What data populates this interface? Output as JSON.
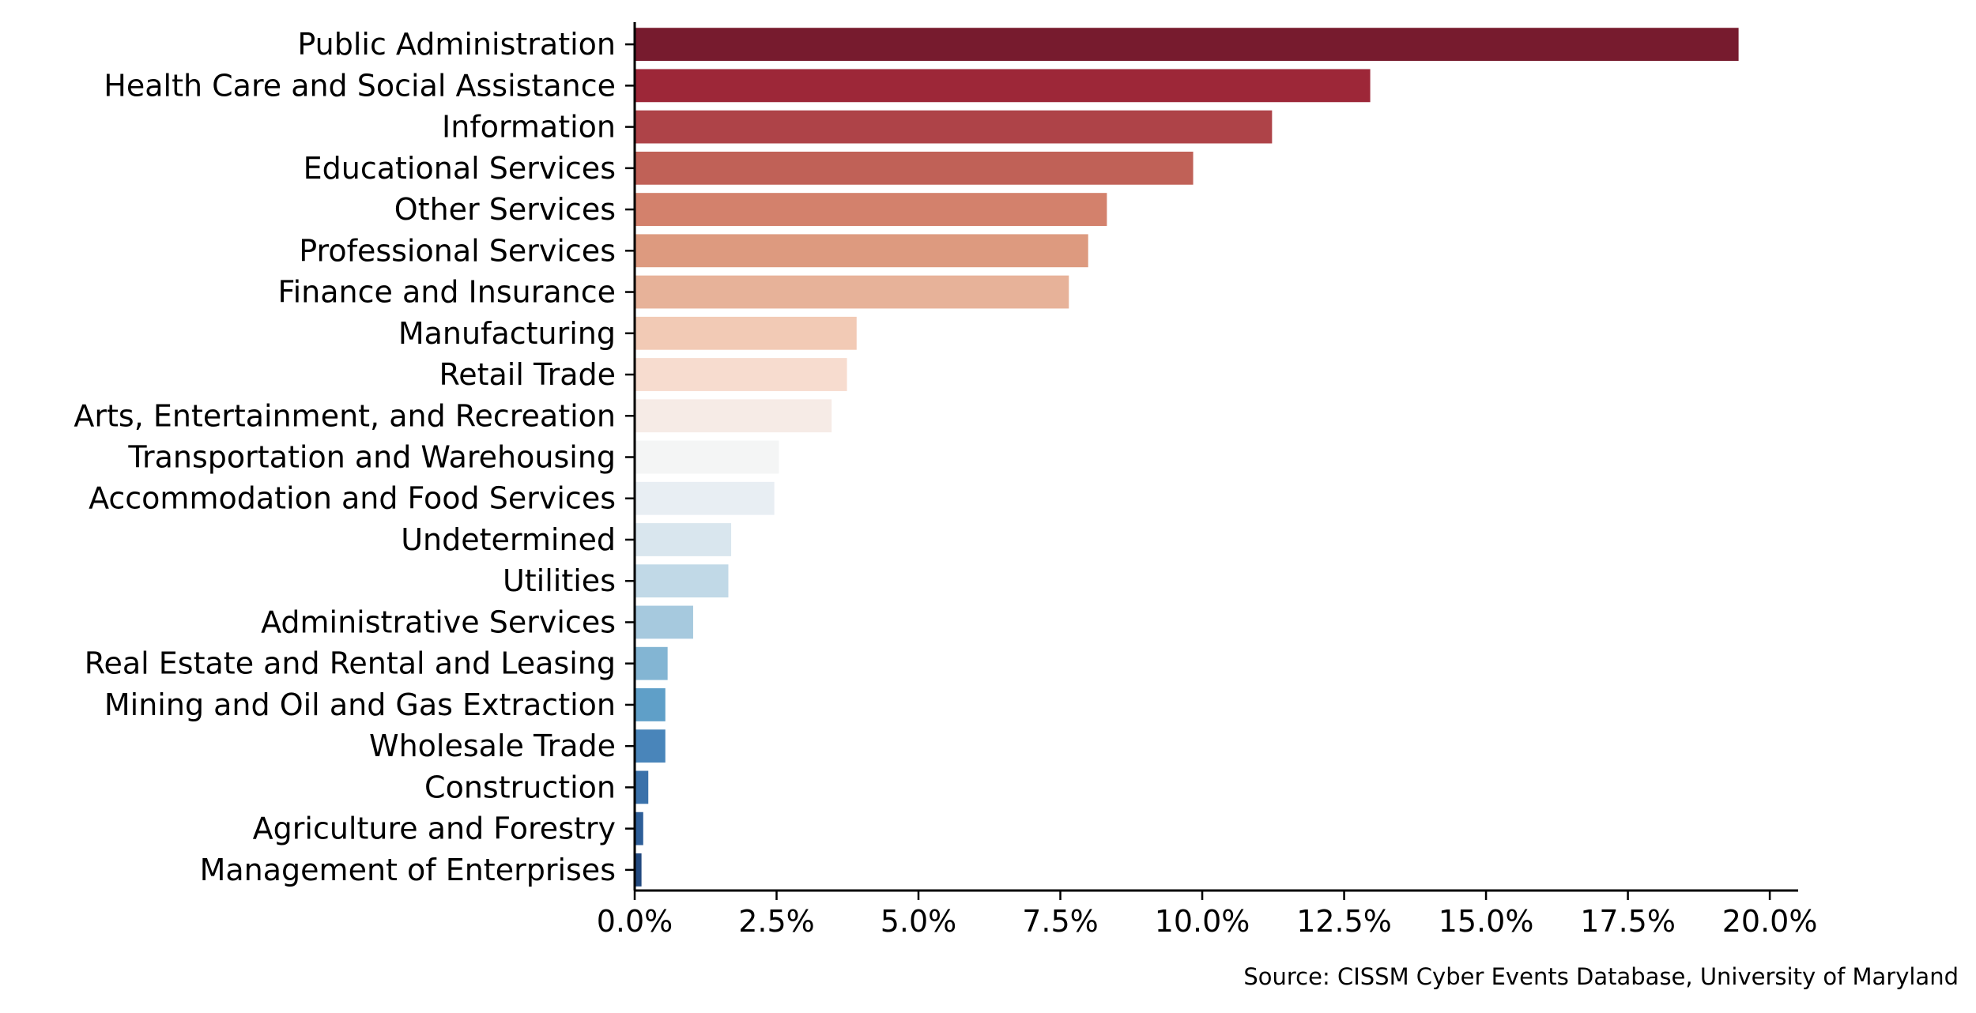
{
  "chart_data": {
    "type": "bar",
    "orientation": "horizontal",
    "title": "",
    "xlabel": "",
    "ylabel": "",
    "categories": [
      "Public Administration",
      "Health Care and Social Assistance",
      "Information",
      "Educational Services",
      "Other Services",
      "Professional Services",
      "Finance and Insurance",
      "Manufacturing",
      "Retail Trade",
      "Arts, Entertainment, and Recreation",
      "Transportation and Warehousing",
      "Accommodation and Food Services",
      "Undetermined",
      "Utilities",
      "Administrative Services",
      "Real Estate and Rental and Leasing",
      "Mining and Oil and Gas Extraction",
      "Wholesale Trade",
      "Construction",
      "Agriculture and Forestry",
      "Management of Enterprises"
    ],
    "values": [
      19.45,
      12.96,
      11.23,
      9.84,
      8.32,
      7.99,
      7.65,
      3.91,
      3.74,
      3.47,
      2.54,
      2.46,
      1.7,
      1.65,
      1.03,
      0.58,
      0.54,
      0.54,
      0.24,
      0.15,
      0.12
    ],
    "colors": [
      "#771b2e",
      "#9d2738",
      "#ae4348",
      "#c06157",
      "#d3816c",
      "#dd9a7f",
      "#e7b299",
      "#f2cab5",
      "#f7dccf",
      "#f6ebe6",
      "#f4f5f5",
      "#e8eef3",
      "#d9e6ee",
      "#c1d9e7",
      "#a6c9de",
      "#83b5d3",
      "#5f9fc8",
      "#4985ba",
      "#3a71aa",
      "#2d5e98",
      "#22497f"
    ],
    "xlim": [
      0,
      20.5
    ],
    "xticks": [
      0,
      2.5,
      5,
      7.5,
      10,
      12.5,
      15,
      17.5,
      20
    ],
    "xtick_labels": [
      "0.0%",
      "2.5%",
      "5.0%",
      "7.5%",
      "10.0%",
      "12.5%",
      "15.0%",
      "17.5%",
      "20.0%"
    ],
    "x_unit": "%",
    "grid": false,
    "legend": "none"
  },
  "source_note": "Source: CISSM Cyber Events Database, University of Maryland"
}
